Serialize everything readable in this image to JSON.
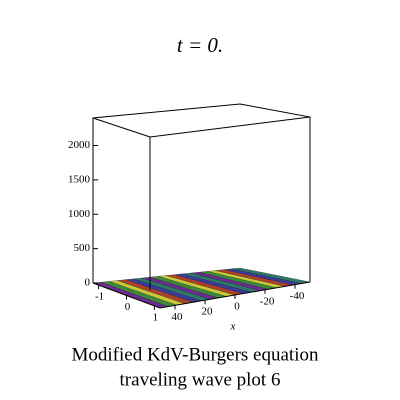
{
  "chart_data": {
    "type": "surface3d",
    "title": "t = 0.",
    "zlim": [
      0,
      2400
    ],
    "zticks": [
      0,
      500,
      1000,
      1500,
      2000
    ],
    "xlim": [
      -1.2,
      1.2
    ],
    "xticks": [
      -1,
      0,
      1
    ],
    "xlabel": "x",
    "ylim": [
      50,
      -50
    ],
    "yticks": [
      40,
      20,
      0,
      -20,
      -40
    ],
    "caption": [
      "Modified KdV-Burgers  equation",
      "traveling wave plot 6"
    ]
  }
}
